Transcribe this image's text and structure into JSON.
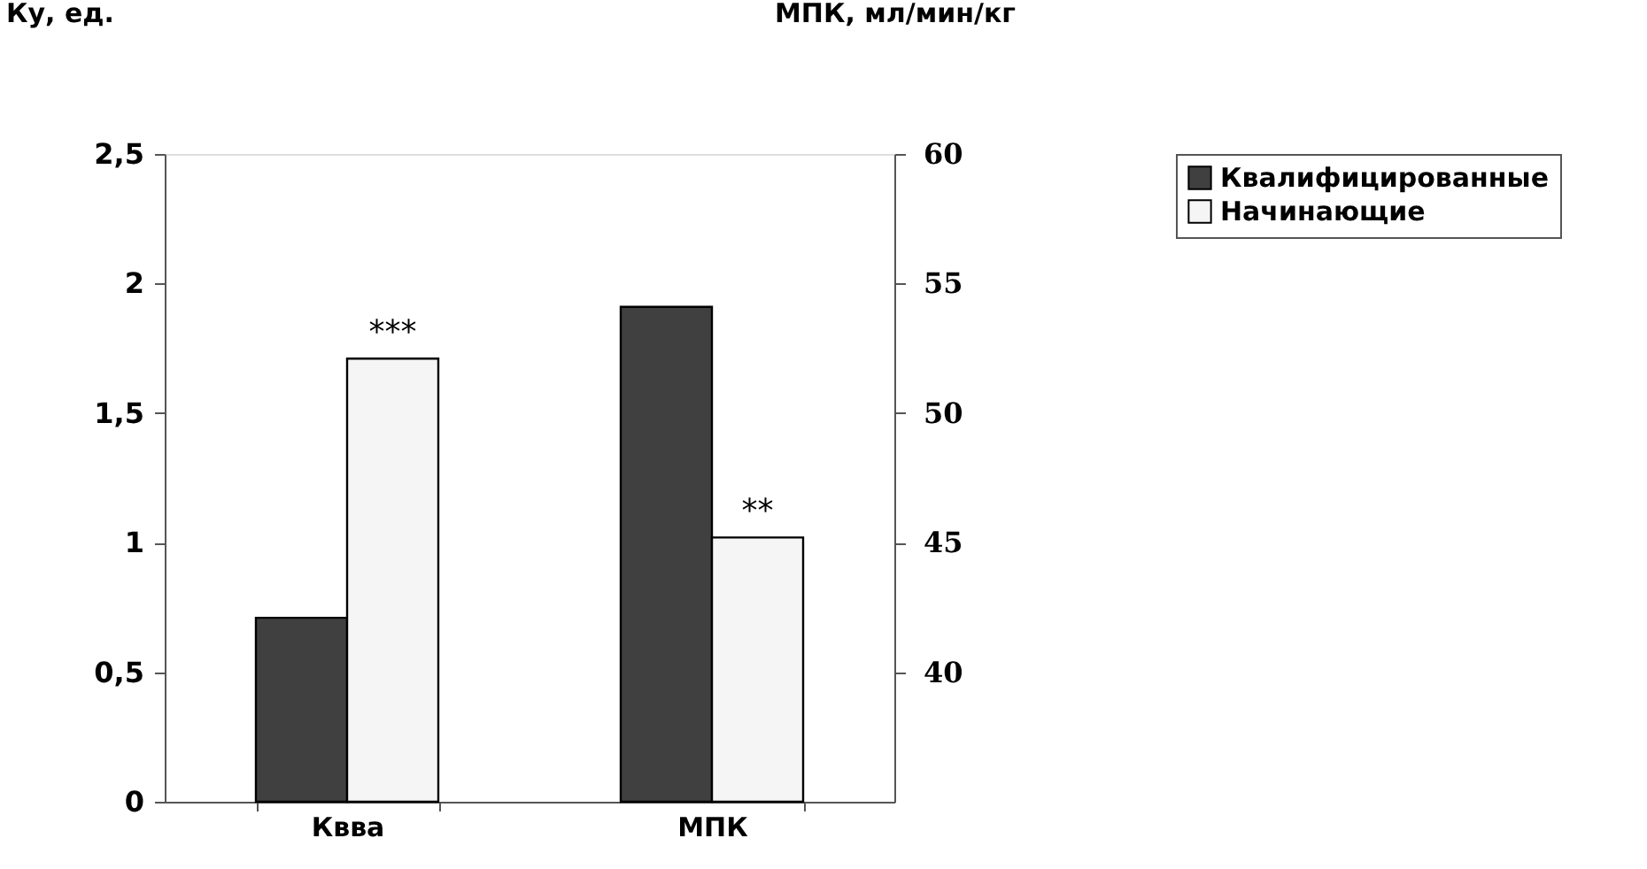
{
  "chart_data": {
    "type": "bar",
    "xlabel": null,
    "ylabel": "Ку, ед.",
    "y2label": "МПК, мл/мин/кг",
    "categories": [
      "Квва",
      "МПК"
    ],
    "series": [
      {
        "name": "Квалифицированные",
        "color": "#404040",
        "values": [
          0.71,
          null
        ]
      },
      {
        "name": "Начинающие",
        "color": "#f5f5f5",
        "values": [
          1.71,
          null
        ]
      },
      {
        "color": "#404040",
        "values": [
          null,
          54.1
        ],
        "axis": "y2"
      },
      {
        "color": "#f5f5f5",
        "values": [
          null,
          45.2
        ],
        "axis": "y2"
      }
    ],
    "ylim": [
      0,
      2.5
    ],
    "yticks": [
      0,
      {
        "value": 0.5,
        "label": "0,5"
      },
      1,
      {
        "value": 1.5,
        "label": "1,5"
      },
      2,
      {
        "value": 2.5,
        "label": "2,5"
      }
    ],
    "y2lim": [
      35,
      60
    ],
    "y2ticks": [
      40,
      45,
      50,
      55,
      60
    ],
    "annotations": [
      "***",
      "**"
    ],
    "grid": false,
    "legend": "right"
  }
}
